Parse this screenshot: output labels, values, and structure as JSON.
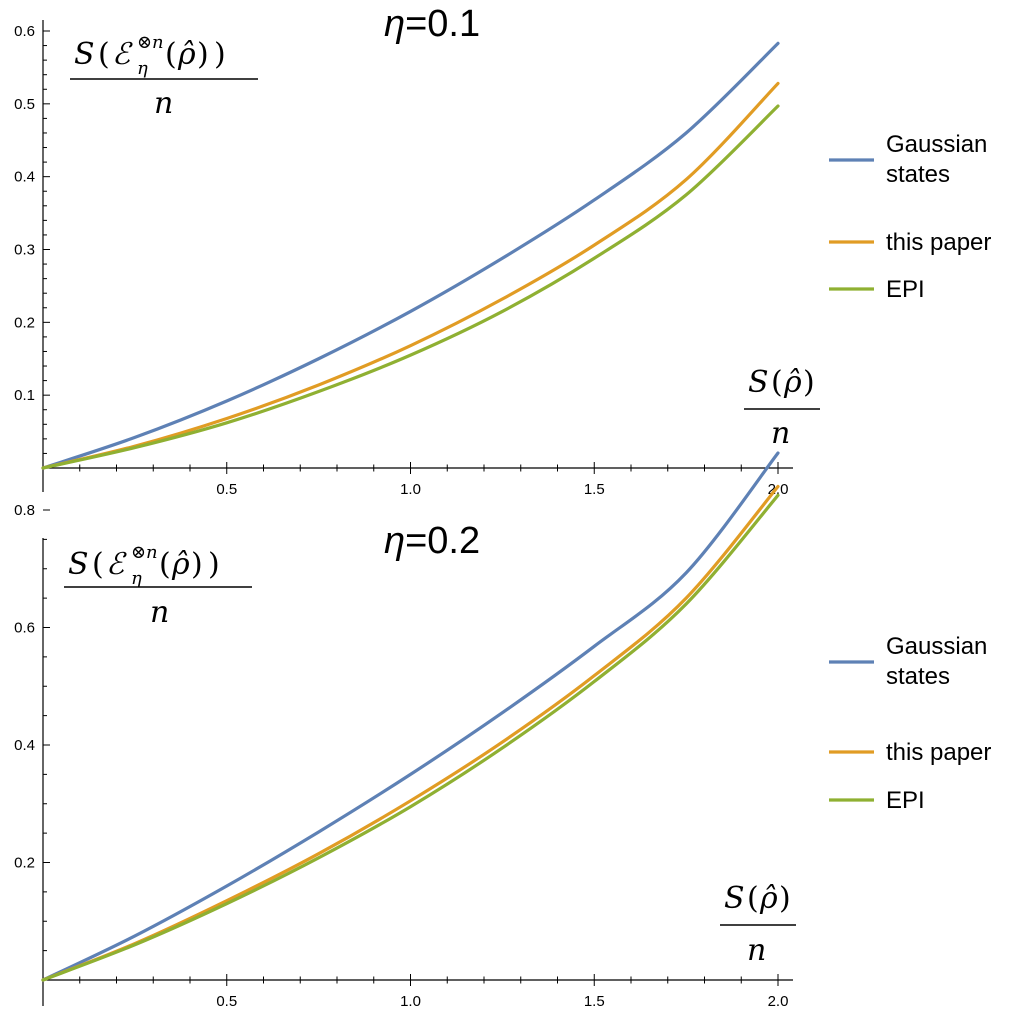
{
  "chart_data": [
    {
      "type": "line",
      "title": "η=0.1",
      "title_parts": {
        "symbol": "η",
        "value": "=0.1"
      },
      "ylabel": "S(E_η^{⊗n}(ρ̂))/n",
      "xlabel": "S(ρ̂)/n",
      "xlim": [
        0,
        2.0
      ],
      "ylim": [
        0,
        0.6
      ],
      "xticks": [
        "0.5",
        "1.0",
        "1.5",
        "2.0"
      ],
      "yticks": [
        "0.1",
        "0.2",
        "0.3",
        "0.4",
        "0.5",
        "0.6"
      ],
      "legend_position": "right",
      "series": [
        {
          "name": "Gaussian states",
          "color": "#5e81b5",
          "x": [
            0,
            0.25,
            0.5,
            0.75,
            1.0,
            1.25,
            1.5,
            1.75,
            2.0
          ],
          "values": [
            0,
            0.042,
            0.092,
            0.15,
            0.215,
            0.288,
            0.368,
            0.46,
            0.583
          ]
        },
        {
          "name": "this paper",
          "color": "#e19c24",
          "x": [
            0,
            0.25,
            0.5,
            0.75,
            1.0,
            1.25,
            1.5,
            1.75,
            2.0
          ],
          "values": [
            0,
            0.03,
            0.068,
            0.114,
            0.168,
            0.232,
            0.306,
            0.396,
            0.528
          ]
        },
        {
          "name": "EPI",
          "color": "#8fb032",
          "x": [
            0,
            0.25,
            0.5,
            0.75,
            1.0,
            1.25,
            1.5,
            1.75,
            2.0
          ],
          "values": [
            0,
            0.028,
            0.062,
            0.105,
            0.155,
            0.215,
            0.288,
            0.375,
            0.497
          ]
        }
      ]
    },
    {
      "type": "line",
      "title": "η=0.2",
      "title_parts": {
        "symbol": "η",
        "value": "=0.2"
      },
      "ylabel": "S(E_η^{⊗n}(ρ̂))/n",
      "xlabel": "S(ρ̂)/n",
      "xlim": [
        0,
        2.0
      ],
      "ylim": [
        0,
        0.95
      ],
      "xticks": [
        "0.5",
        "1.0",
        "1.5",
        "2.0"
      ],
      "yticks": [
        "0.2",
        "0.4",
        "0.6",
        "0.8"
      ],
      "legend_position": "right",
      "series": [
        {
          "name": "Gaussian states",
          "color": "#5e81b5",
          "x": [
            0,
            0.25,
            0.5,
            0.75,
            1.0,
            1.25,
            1.5,
            1.75,
            2.0
          ],
          "values": [
            0,
            0.075,
            0.16,
            0.252,
            0.35,
            0.455,
            0.568,
            0.693,
            0.897
          ]
        },
        {
          "name": "this paper",
          "color": "#e19c24",
          "x": [
            0,
            0.25,
            0.5,
            0.75,
            1.0,
            1.25,
            1.5,
            1.75,
            2.0
          ],
          "values": [
            0,
            0.062,
            0.135,
            0.215,
            0.305,
            0.405,
            0.518,
            0.65,
            0.84
          ]
        },
        {
          "name": "EPI",
          "color": "#8fb032",
          "x": [
            0,
            0.25,
            0.5,
            0.75,
            1.0,
            1.25,
            1.5,
            1.75,
            2.0
          ],
          "values": [
            0,
            0.06,
            0.13,
            0.208,
            0.295,
            0.395,
            0.508,
            0.64,
            0.825
          ]
        }
      ]
    }
  ]
}
